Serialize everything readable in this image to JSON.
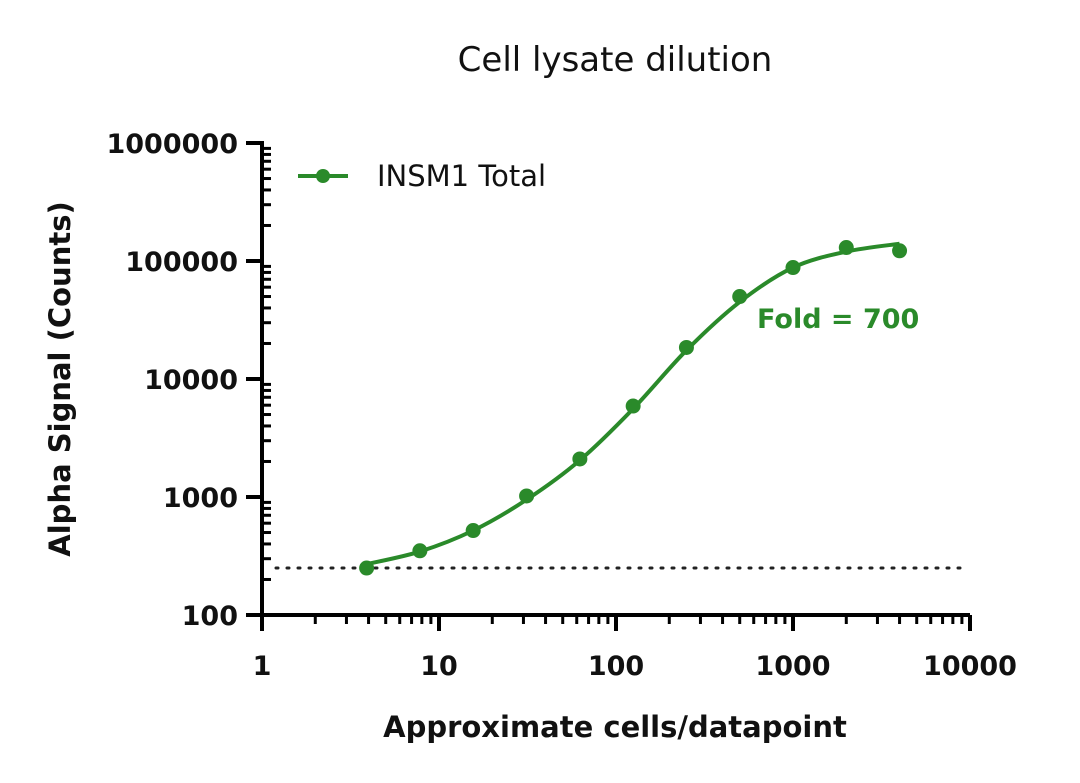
{
  "chart_data": {
    "type": "scatter",
    "title": "Cell lysate dilution",
    "xlabel": "Approximate cells/datapoint",
    "ylabel": "Alpha Signal (Counts)",
    "x_scale": "log",
    "y_scale": "log",
    "xlim": [
      1,
      10000
    ],
    "ylim": [
      100,
      1000000
    ],
    "x_ticks": [
      "1",
      "10",
      "100",
      "1000",
      "10000"
    ],
    "y_ticks": [
      "100",
      "1000",
      "10000",
      "100000",
      "1000000"
    ],
    "legend_position": "top-left",
    "series": [
      {
        "name": "INSM1 Total",
        "color": "#2a8a2a",
        "points": [
          {
            "x": 3.9,
            "y": 250
          },
          {
            "x": 7.8,
            "y": 350
          },
          {
            "x": 15.6,
            "y": 520
          },
          {
            "x": 31.25,
            "y": 1020
          },
          {
            "x": 62.5,
            "y": 2100
          },
          {
            "x": 125,
            "y": 5900
          },
          {
            "x": 250,
            "y": 18500
          },
          {
            "x": 500,
            "y": 50000
          },
          {
            "x": 1000,
            "y": 88000
          },
          {
            "x": 2000,
            "y": 130000
          },
          {
            "x": 4000,
            "y": 122000
          }
        ],
        "fit_curve": [
          {
            "x": 3.9,
            "y": 270
          },
          {
            "x": 7.8,
            "y": 345
          },
          {
            "x": 15.6,
            "y": 520
          },
          {
            "x": 31.25,
            "y": 950
          },
          {
            "x": 62.5,
            "y": 2050
          },
          {
            "x": 125,
            "y": 5600
          },
          {
            "x": 250,
            "y": 17500
          },
          {
            "x": 500,
            "y": 45000
          },
          {
            "x": 1000,
            "y": 88000
          },
          {
            "x": 2000,
            "y": 120000
          },
          {
            "x": 4000,
            "y": 140000
          }
        ]
      }
    ],
    "baseline": {
      "y": 250,
      "style": "dotted"
    },
    "annotation": {
      "text": "Fold = 700",
      "x": 1800,
      "y": 33000,
      "color": "#2a8a2a"
    }
  }
}
